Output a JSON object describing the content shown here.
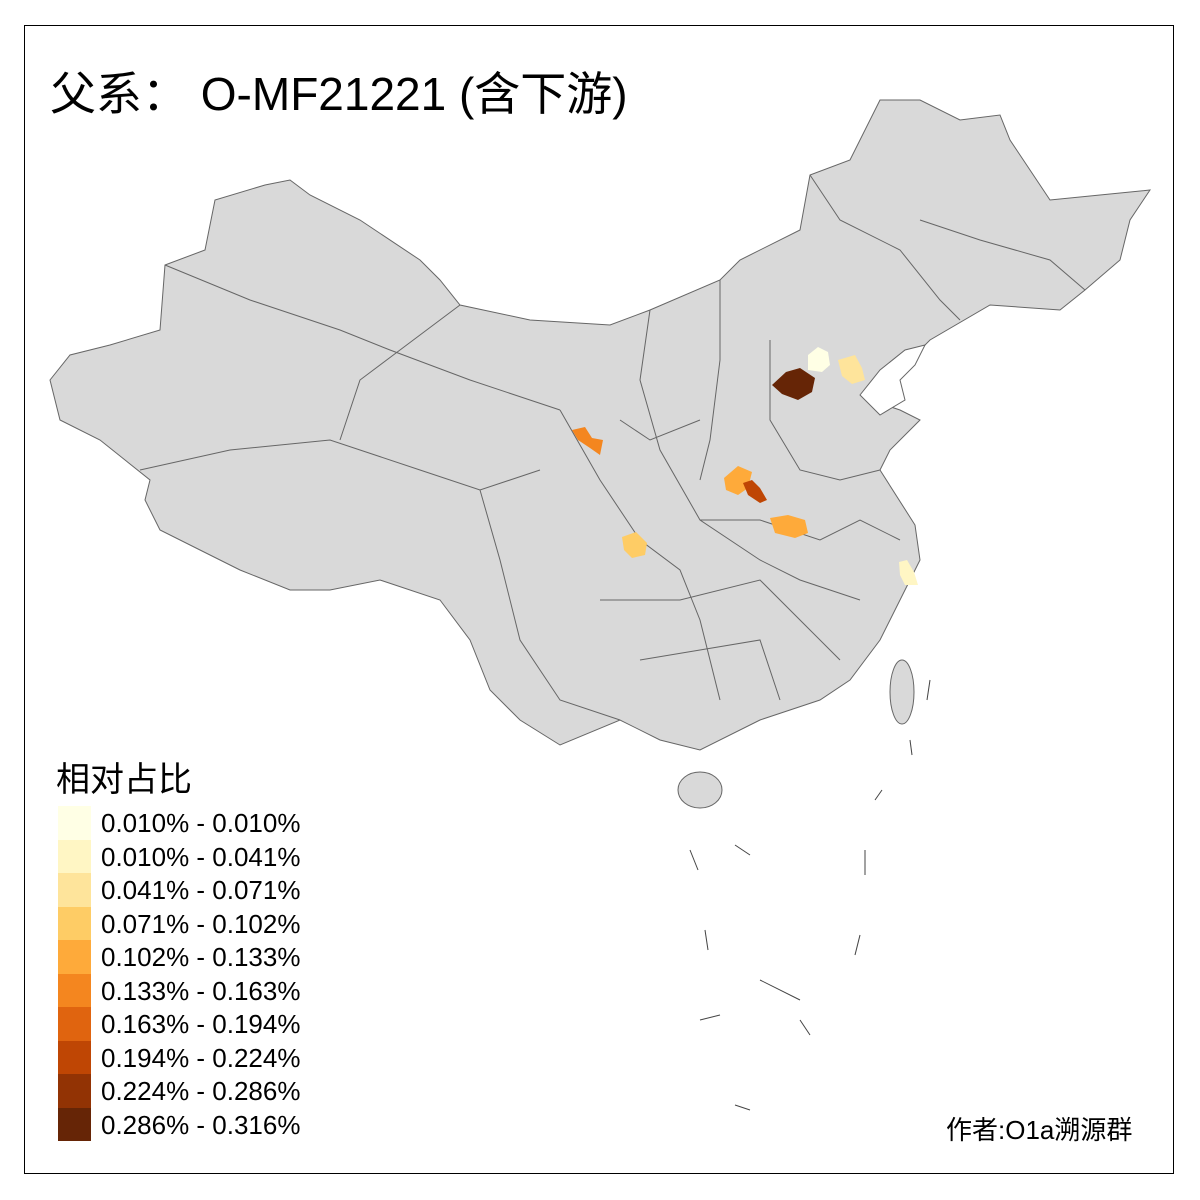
{
  "title": "父系： O-MF21221 (含下游)",
  "legend": {
    "title": "相对占比",
    "items": [
      {
        "label": "0.010% - 0.010%",
        "color": "#FFFFE5"
      },
      {
        "label": "0.010% - 0.041%",
        "color": "#FFF6C4"
      },
      {
        "label": "0.041% - 0.071%",
        "color": "#FEE49B"
      },
      {
        "label": "0.071% - 0.102%",
        "color": "#FECC65"
      },
      {
        "label": "0.102% - 0.133%",
        "color": "#FEAA3A"
      },
      {
        "label": "0.133% - 0.163%",
        "color": "#F4861F"
      },
      {
        "label": "0.163% - 0.194%",
        "color": "#E0640F"
      },
      {
        "label": "0.194% - 0.224%",
        "color": "#BF4604"
      },
      {
        "label": "0.224% - 0.286%",
        "color": "#923304"
      },
      {
        "label": "0.286% - 0.316%",
        "color": "#662506"
      }
    ]
  },
  "credit": "作者:O1a溯源群",
  "colors": {
    "base_region": "#D9D9D9",
    "border": "#666666"
  }
}
